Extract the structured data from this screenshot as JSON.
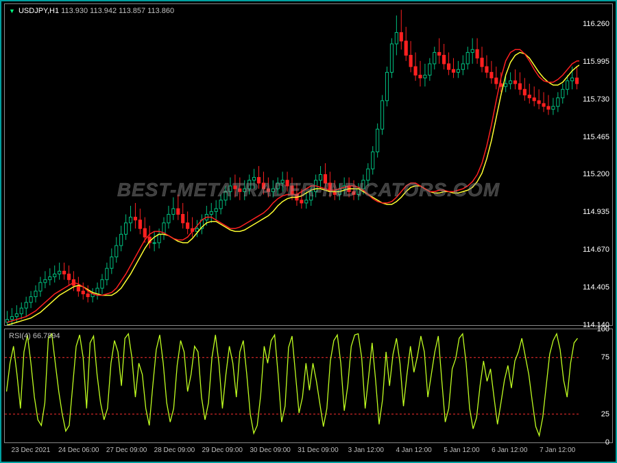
{
  "chart": {
    "title_symbol": "USDJPY,H1",
    "title_prices": "113.930 113.942 113.857 113.860",
    "background_color": "#000000",
    "border_color": "#888888",
    "outer_border_color": "#00a0a0",
    "text_color": "#ffffff",
    "axis_text_color": "#c0c0c0",
    "bull_color": "#00c080",
    "bear_color": "#ff2020",
    "ma1_color": "#ff2020",
    "ma2_color": "#ffff30",
    "yaxis_min": 114.14,
    "yaxis_max": 116.4,
    "yaxis_ticks": [
      116.26,
      115.995,
      115.73,
      115.465,
      115.2,
      114.935,
      114.67,
      114.405,
      114.14
    ],
    "yaxis_area_width": 52,
    "xaxis_labels": [
      "23 Dec 2021",
      "24 Dec 06:00",
      "27 Dec 09:00",
      "28 Dec 09:00",
      "29 Dec 09:00",
      "30 Dec 09:00",
      "31 Dec 09:00",
      "3 Jan 12:00",
      "4 Jan 12:00",
      "5 Jan 12:00",
      "6 Jan 12:00",
      "7 Jan 12:00"
    ],
    "ma1": [
      114.16,
      114.17,
      114.18,
      114.19,
      114.2,
      114.22,
      114.24,
      114.27,
      114.3,
      114.33,
      114.36,
      114.38,
      114.4,
      114.42,
      114.44,
      114.43,
      114.41,
      114.38,
      114.36,
      114.35,
      114.35,
      114.36,
      114.37,
      114.4,
      114.45,
      114.5,
      114.56,
      114.62,
      114.68,
      114.74,
      114.78,
      114.8,
      114.8,
      114.79,
      114.77,
      114.75,
      114.74,
      114.74,
      114.76,
      114.8,
      114.84,
      114.88,
      114.9,
      114.9,
      114.88,
      114.86,
      114.84,
      114.82,
      114.82,
      114.83,
      114.85,
      114.87,
      114.89,
      114.91,
      114.93,
      114.96,
      115.0,
      115.03,
      115.05,
      115.06,
      115.06,
      115.06,
      115.08,
      115.1,
      115.12,
      115.12,
      115.11,
      115.1,
      115.09,
      115.09,
      115.1,
      115.11,
      115.12,
      115.12,
      115.11,
      115.09,
      115.06,
      115.03,
      115.01,
      115.0,
      115.0,
      115.01,
      115.04,
      115.08,
      115.12,
      115.14,
      115.14,
      115.12,
      115.1,
      115.08,
      115.08,
      115.09,
      115.09,
      115.08,
      115.08,
      115.09,
      115.1,
      115.12,
      115.15,
      115.2,
      115.28,
      115.4,
      115.55,
      115.72,
      115.88,
      116.0,
      116.06,
      116.08,
      116.08,
      116.05,
      116.0,
      115.94,
      115.89,
      115.86,
      115.85,
      115.85,
      115.87,
      115.9,
      115.94,
      115.98,
      116.0,
      116.0,
      115.99,
      115.97,
      115.95,
      115.93,
      115.92,
      115.92,
      115.93,
      115.96,
      116.0,
      116.03,
      116.04,
      116.04,
      116.02,
      116.0,
      115.97,
      115.94,
      115.91,
      115.88,
      115.86,
      115.84,
      115.83,
      115.83,
      115.83,
      115.84,
      115.84,
      115.83,
      115.82,
      115.8,
      115.78,
      115.76,
      115.74,
      115.72,
      115.7,
      115.68,
      115.67,
      115.66,
      115.66,
      115.67,
      115.69,
      115.71,
      115.73,
      115.75,
      115.76
    ],
    "ma2": [
      114.14,
      114.15,
      114.16,
      114.17,
      114.18,
      114.19,
      114.21,
      114.23,
      114.26,
      114.29,
      114.32,
      114.35,
      114.37,
      114.39,
      114.41,
      114.42,
      114.41,
      114.39,
      114.37,
      114.36,
      114.35,
      114.35,
      114.35,
      114.37,
      114.4,
      114.45,
      114.5,
      114.56,
      114.62,
      114.68,
      114.73,
      114.76,
      114.78,
      114.78,
      114.77,
      114.75,
      114.73,
      114.72,
      114.72,
      114.75,
      114.79,
      114.83,
      114.86,
      114.87,
      114.87,
      114.85,
      114.83,
      114.81,
      114.8,
      114.8,
      114.81,
      114.83,
      114.85,
      114.87,
      114.89,
      114.91,
      114.94,
      114.98,
      115.01,
      115.03,
      115.04,
      115.04,
      115.05,
      115.07,
      115.09,
      115.1,
      115.1,
      115.09,
      115.08,
      115.08,
      115.08,
      115.09,
      115.1,
      115.1,
      115.1,
      115.08,
      115.06,
      115.04,
      115.02,
      115.0,
      114.99,
      114.99,
      115.01,
      115.04,
      115.08,
      115.11,
      115.12,
      115.12,
      115.1,
      115.08,
      115.07,
      115.07,
      115.08,
      115.08,
      115.07,
      115.07,
      115.08,
      115.09,
      115.11,
      115.15,
      115.21,
      115.31,
      115.44,
      115.6,
      115.76,
      115.9,
      115.99,
      116.04,
      116.06,
      116.05,
      116.02,
      115.97,
      115.92,
      115.88,
      115.85,
      115.83,
      115.83,
      115.85,
      115.89,
      115.93,
      115.96,
      115.98,
      115.98,
      115.97,
      115.95,
      115.93,
      115.91,
      115.9,
      115.9,
      115.92,
      115.96,
      115.99,
      116.02,
      116.03,
      116.02,
      116.0,
      115.98,
      115.95,
      115.92,
      115.89,
      115.86,
      115.84,
      115.83,
      115.82,
      115.82,
      115.82,
      115.83,
      115.83,
      115.82,
      115.81,
      115.79,
      115.77,
      115.75,
      115.73,
      115.71,
      115.69,
      115.67,
      115.66,
      115.65,
      115.65,
      115.66,
      115.68,
      115.7,
      115.72,
      115.74
    ],
    "candles": [
      [
        114.16,
        114.24,
        114.1,
        114.18
      ],
      [
        114.18,
        114.26,
        114.14,
        114.2
      ],
      [
        114.2,
        114.28,
        114.16,
        114.22
      ],
      [
        114.22,
        114.3,
        114.18,
        114.26
      ],
      [
        114.26,
        114.34,
        114.2,
        114.3
      ],
      [
        114.3,
        114.38,
        114.26,
        114.34
      ],
      [
        114.34,
        114.42,
        114.3,
        114.38
      ],
      [
        114.38,
        114.48,
        114.34,
        114.44
      ],
      [
        114.44,
        114.52,
        114.4,
        114.46
      ],
      [
        114.46,
        114.54,
        114.42,
        114.48
      ],
      [
        114.48,
        114.56,
        114.44,
        114.5
      ],
      [
        114.5,
        114.58,
        114.46,
        114.52
      ],
      [
        114.52,
        114.58,
        114.46,
        114.5
      ],
      [
        114.5,
        114.56,
        114.42,
        114.46
      ],
      [
        114.46,
        114.52,
        114.38,
        114.42
      ],
      [
        114.42,
        114.48,
        114.34,
        114.38
      ],
      [
        114.38,
        114.44,
        114.32,
        114.36
      ],
      [
        114.36,
        114.42,
        114.3,
        114.34
      ],
      [
        114.34,
        114.4,
        114.3,
        114.36
      ],
      [
        114.36,
        114.44,
        114.32,
        114.4
      ],
      [
        114.4,
        114.5,
        114.36,
        114.46
      ],
      [
        114.46,
        114.58,
        114.42,
        114.54
      ],
      [
        114.54,
        114.68,
        114.5,
        114.62
      ],
      [
        114.62,
        114.76,
        114.58,
        114.7
      ],
      [
        114.7,
        114.84,
        114.66,
        114.78
      ],
      [
        114.78,
        114.92,
        114.74,
        114.86
      ],
      [
        114.86,
        114.98,
        114.8,
        114.9
      ],
      [
        114.9,
        115.0,
        114.82,
        114.88
      ],
      [
        114.88,
        114.96,
        114.78,
        114.82
      ],
      [
        114.82,
        114.9,
        114.72,
        114.76
      ],
      [
        114.76,
        114.84,
        114.68,
        114.72
      ],
      [
        114.72,
        114.8,
        114.66,
        114.72
      ],
      [
        114.72,
        114.82,
        114.68,
        114.78
      ],
      [
        114.78,
        114.9,
        114.74,
        114.86
      ],
      [
        114.86,
        114.98,
        114.82,
        114.92
      ],
      [
        114.92,
        115.04,
        114.88,
        114.96
      ],
      [
        114.96,
        115.06,
        114.88,
        114.92
      ],
      [
        114.92,
        115.0,
        114.82,
        114.86
      ],
      [
        114.86,
        114.94,
        114.78,
        114.82
      ],
      [
        114.82,
        114.9,
        114.76,
        114.8
      ],
      [
        114.8,
        114.88,
        114.76,
        114.82
      ],
      [
        114.82,
        114.92,
        114.78,
        114.88
      ],
      [
        114.88,
        114.98,
        114.84,
        114.92
      ],
      [
        114.92,
        115.0,
        114.86,
        114.94
      ],
      [
        114.94,
        115.02,
        114.88,
        114.96
      ],
      [
        114.96,
        115.06,
        114.92,
        115.02
      ],
      [
        115.02,
        115.12,
        114.98,
        115.08
      ],
      [
        115.08,
        115.18,
        115.02,
        115.12
      ],
      [
        115.12,
        115.2,
        115.04,
        115.1
      ],
      [
        115.1,
        115.18,
        115.02,
        115.08
      ],
      [
        115.08,
        115.16,
        115.02,
        115.1
      ],
      [
        115.1,
        115.2,
        115.06,
        115.16
      ],
      [
        115.16,
        115.24,
        115.1,
        115.18
      ],
      [
        115.18,
        115.26,
        115.1,
        115.14
      ],
      [
        115.14,
        115.22,
        115.06,
        115.1
      ],
      [
        115.1,
        115.18,
        115.04,
        115.08
      ],
      [
        115.08,
        115.16,
        115.04,
        115.1
      ],
      [
        115.1,
        115.18,
        115.06,
        115.14
      ],
      [
        115.14,
        115.22,
        115.08,
        115.16
      ],
      [
        115.16,
        115.22,
        115.08,
        115.12
      ],
      [
        115.12,
        115.18,
        115.02,
        115.06
      ],
      [
        115.06,
        115.14,
        114.98,
        115.02
      ],
      [
        115.02,
        115.1,
        114.96,
        115.0
      ],
      [
        115.0,
        115.08,
        114.96,
        115.02
      ],
      [
        115.02,
        115.12,
        114.98,
        115.08
      ],
      [
        115.08,
        115.2,
        115.04,
        115.16
      ],
      [
        115.16,
        115.26,
        115.1,
        115.2
      ],
      [
        115.2,
        115.28,
        115.1,
        115.14
      ],
      [
        115.14,
        115.22,
        115.04,
        115.08
      ],
      [
        115.08,
        115.16,
        115.02,
        115.06
      ],
      [
        115.06,
        115.14,
        115.02,
        115.1
      ],
      [
        115.1,
        115.18,
        115.06,
        115.12
      ],
      [
        115.12,
        115.18,
        115.04,
        115.08
      ],
      [
        115.08,
        115.16,
        115.02,
        115.06
      ],
      [
        115.06,
        115.14,
        115.02,
        115.1
      ],
      [
        115.1,
        115.2,
        115.06,
        115.16
      ],
      [
        115.16,
        115.28,
        115.12,
        115.24
      ],
      [
        115.24,
        115.4,
        115.2,
        115.36
      ],
      [
        115.36,
        115.56,
        115.32,
        115.52
      ],
      [
        115.52,
        115.76,
        115.48,
        115.72
      ],
      [
        115.72,
        115.96,
        115.68,
        115.92
      ],
      [
        115.92,
        116.16,
        115.88,
        116.12
      ],
      [
        116.12,
        116.32,
        116.04,
        116.2
      ],
      [
        116.2,
        116.36,
        116.08,
        116.14
      ],
      [
        116.14,
        116.24,
        116.0,
        116.04
      ],
      [
        116.04,
        116.14,
        115.92,
        115.96
      ],
      [
        115.96,
        116.06,
        115.86,
        115.9
      ],
      [
        115.9,
        116.0,
        115.82,
        115.88
      ],
      [
        115.88,
        115.98,
        115.82,
        115.9
      ],
      [
        115.9,
        116.02,
        115.86,
        115.98
      ],
      [
        115.98,
        116.1,
        115.94,
        116.06
      ],
      [
        116.06,
        116.16,
        115.98,
        116.04
      ],
      [
        116.04,
        116.12,
        115.94,
        115.98
      ],
      [
        115.98,
        116.06,
        115.9,
        115.94
      ],
      [
        115.94,
        116.02,
        115.88,
        115.92
      ],
      [
        115.92,
        116.0,
        115.88,
        115.94
      ],
      [
        115.94,
        116.04,
        115.9,
        115.98
      ],
      [
        115.98,
        116.1,
        115.94,
        116.06
      ],
      [
        116.06,
        116.16,
        115.98,
        116.08
      ],
      [
        116.08,
        116.16,
        115.98,
        116.02
      ],
      [
        116.02,
        116.1,
        115.92,
        115.96
      ],
      [
        115.96,
        116.04,
        115.88,
        115.92
      ],
      [
        115.92,
        116.0,
        115.84,
        115.88
      ],
      [
        115.88,
        115.96,
        115.8,
        115.84
      ],
      [
        115.84,
        115.92,
        115.78,
        115.82
      ],
      [
        115.82,
        115.9,
        115.78,
        115.84
      ],
      [
        115.84,
        115.92,
        115.8,
        115.86
      ],
      [
        115.86,
        115.94,
        115.8,
        115.84
      ],
      [
        115.84,
        115.92,
        115.76,
        115.8
      ],
      [
        115.8,
        115.88,
        115.72,
        115.76
      ],
      [
        115.76,
        115.84,
        115.7,
        115.74
      ],
      [
        115.74,
        115.82,
        115.68,
        115.72
      ],
      [
        115.72,
        115.8,
        115.66,
        115.7
      ],
      [
        115.7,
        115.78,
        115.64,
        115.68
      ],
      [
        115.68,
        115.76,
        115.62,
        115.66
      ],
      [
        115.66,
        115.74,
        115.62,
        115.68
      ],
      [
        115.68,
        115.78,
        115.64,
        115.74
      ],
      [
        115.74,
        115.84,
        115.7,
        115.8
      ],
      [
        115.8,
        115.9,
        115.76,
        115.86
      ],
      [
        115.86,
        115.96,
        115.8,
        115.88
      ],
      [
        115.88,
        115.96,
        115.8,
        115.84
      ]
    ]
  },
  "rsi": {
    "title": "RSI(4) 66.7894",
    "line_color": "#c0ff20",
    "level_color": "#ff3030",
    "background_color": "#000000",
    "ymin": 0,
    "ymax": 100,
    "levels": [
      25,
      75
    ],
    "yticks": [
      0,
      25,
      75,
      100
    ],
    "values": [
      45,
      70,
      85,
      60,
      30,
      80,
      95,
      70,
      40,
      20,
      15,
      35,
      92,
      96,
      70,
      45,
      25,
      10,
      15,
      50,
      85,
      95,
      75,
      30,
      88,
      94,
      60,
      35,
      20,
      30,
      70,
      90,
      80,
      50,
      92,
      96,
      75,
      40,
      70,
      60,
      30,
      15,
      50,
      82,
      95,
      70,
      35,
      18,
      30,
      68,
      90,
      80,
      45,
      60,
      85,
      80,
      40,
      20,
      35,
      75,
      95,
      70,
      30,
      60,
      85,
      70,
      40,
      80,
      90,
      60,
      25,
      8,
      15,
      42,
      85,
      70,
      90,
      95,
      60,
      18,
      32,
      84,
      94,
      60,
      26,
      40,
      70,
      46,
      70,
      54,
      34,
      14,
      30,
      72,
      90,
      95,
      70,
      28,
      50,
      85,
      95,
      96,
      75,
      30,
      58,
      88,
      55,
      16,
      38,
      80,
      50,
      78,
      92,
      70,
      32,
      60,
      85,
      62,
      76,
      94,
      80,
      40,
      60,
      80,
      94,
      55,
      18,
      30,
      65,
      74,
      92,
      96,
      70,
      30,
      12,
      22,
      50,
      72,
      54,
      65,
      40,
      16,
      35,
      55,
      68,
      48,
      72,
      80,
      92,
      76,
      60,
      36,
      14,
      6,
      22,
      50,
      78,
      90,
      96,
      82,
      55,
      40,
      70,
      88,
      92
    ]
  },
  "watermark": {
    "text": "BEST-METATRADER-INDICATORS.COM"
  }
}
